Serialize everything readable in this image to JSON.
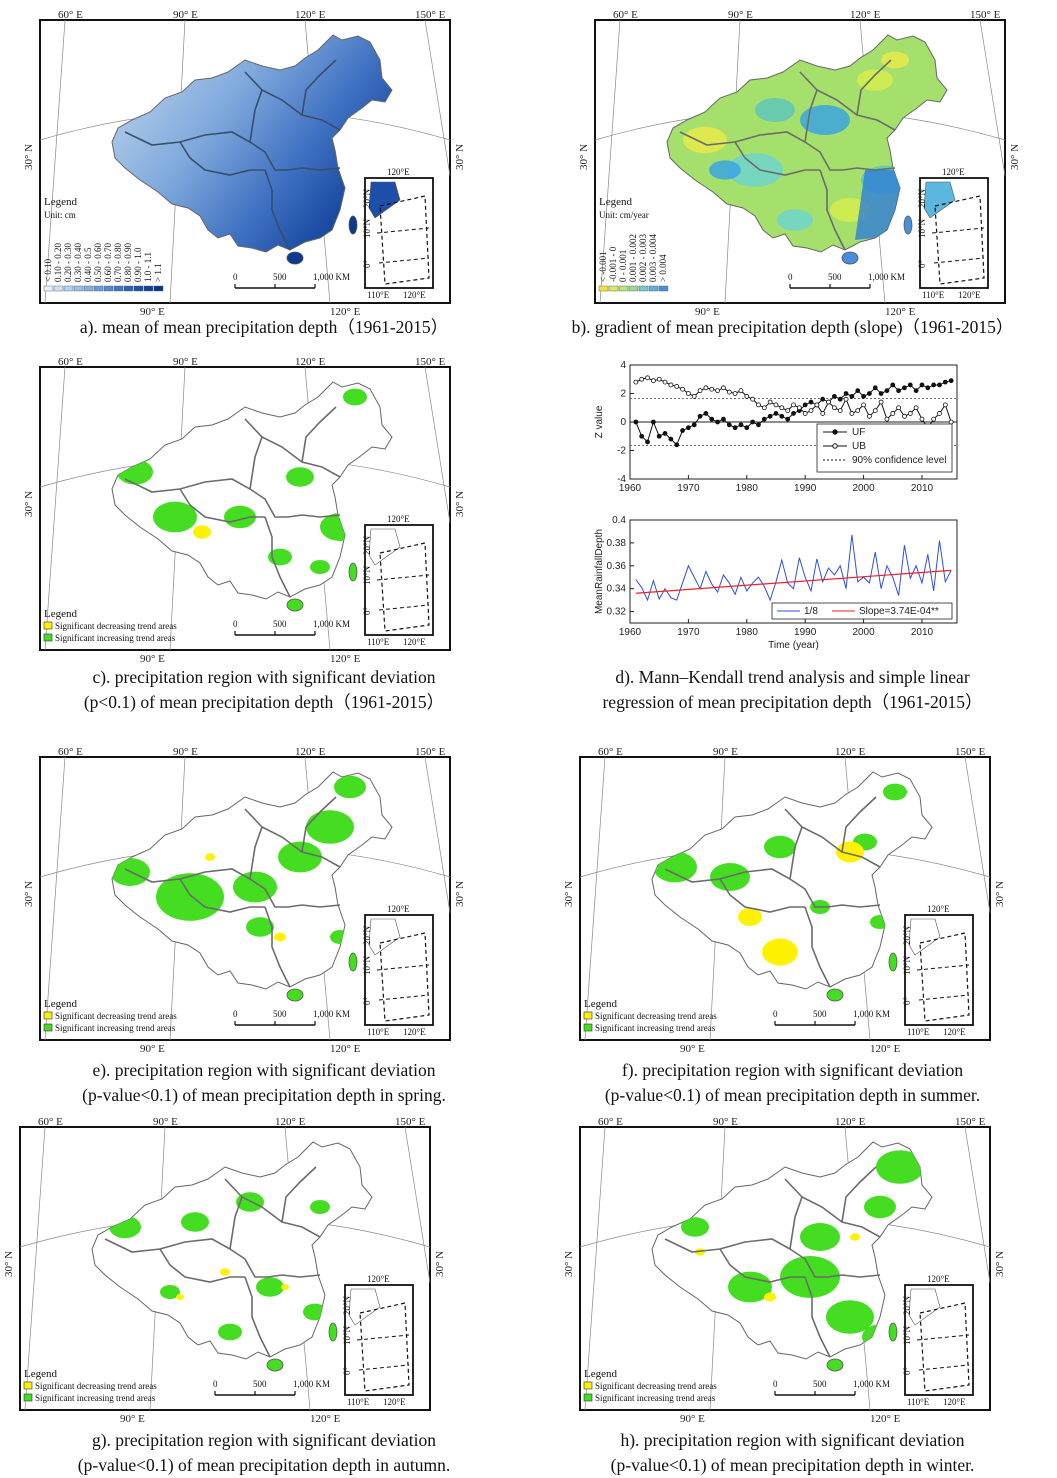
{
  "maps": [
    {
      "id": "a",
      "mode": "gradient",
      "legend_title": "Legend",
      "legend_unit": "Unit: cm",
      "classes": [
        "< 0.10",
        "0.10 - 0.20",
        "0.20 - 0.30",
        "0.30 - 0.40",
        "0.40 - 0.5",
        "0.50 - 0.60",
        "0.60 - 0.70",
        "0.70 - 0.80",
        "0.80 - 0.90",
        "0.90 - 1.0",
        "1.0 - 1.1",
        "> 1.1"
      ],
      "class_colors": [
        "#e6f0fa",
        "#cfe1f4",
        "#b6d1ee",
        "#9cc0e7",
        "#84afe0",
        "#6c9cd7",
        "#5589cd",
        "#4077c2",
        "#2d64b5",
        "#1d52a6",
        "#124296",
        "#0a3486"
      ],
      "caption_lines": [
        "a). mean of mean precipitation depth（1961-2015）"
      ]
    },
    {
      "id": "b",
      "mode": "slope",
      "legend_title": "Legend",
      "legend_unit": "Unit: cm/year",
      "classes": [
        "< -0.001",
        "-0.001 - 0",
        "0 - 0.001",
        "0.001 - 0.002",
        "0.002 - 0.003",
        "0.003 - 0.004",
        "> 0.004"
      ],
      "class_colors": [
        "#f2e43a",
        "#d8ec58",
        "#b8e674",
        "#96dc98",
        "#76c9c6",
        "#5aaee0",
        "#4a8edb"
      ],
      "caption_lines": [
        "b). gradient of mean precipitation depth (slope)（1961-2015）"
      ]
    },
    {
      "id": "c",
      "mode": "sig",
      "legend_title": "Legend",
      "caption_lines": [
        "c). precipitation region with significant deviation",
        "(p<0.1) of mean precipitation depth（1961-2015）"
      ]
    },
    {
      "id": "e",
      "mode": "sig",
      "legend_title": "Legend",
      "caption_lines": [
        "e). precipitation region with significant deviation",
        "(p-value<0.1) of mean precipitation depth in spring."
      ]
    },
    {
      "id": "f",
      "mode": "sig",
      "legend_title": "Legend",
      "caption_lines": [
        "f). precipitation region with significant deviation",
        "(p-value<0.1) of mean precipitation depth in summer."
      ]
    },
    {
      "id": "g",
      "mode": "sig",
      "legend_title": "Legend",
      "caption_lines": [
        "g). precipitation region with significant deviation",
        "(p-value<0.1) of mean precipitation depth in autumn."
      ]
    },
    {
      "id": "h",
      "mode": "sig",
      "legend_title": "Legend",
      "caption_lines": [
        "h). precipitation region with significant deviation",
        "(p-value<0.1) of mean precipitation depth in winter."
      ]
    }
  ],
  "map_common": {
    "top_ticks": [
      "60°  E",
      "90°  E",
      "120°  E",
      "150°  E"
    ],
    "bottom_ticks": [
      "90°  E",
      "120°  E"
    ],
    "left_tick": "30°  N",
    "right_tick": "30°  N",
    "sig_legend": [
      "Significant decreasing trend areas",
      "Significant increasing trend areas"
    ],
    "sig_colors": {
      "decrease": "#fff200",
      "increase": "#44dd22",
      "land": "#ffffff",
      "boundary": "#777777"
    },
    "scale_labels": [
      "0",
      "500",
      "1,000  KM"
    ],
    "inset_lat": [
      "20°N",
      "10°N",
      "0°"
    ],
    "inset_lon": [
      "110°E",
      "120°E"
    ],
    "inset_top": "120°E"
  },
  "chart_data": [
    {
      "type": "line",
      "id": "d-mk",
      "ylabel": "Z value",
      "ylim": [
        -4,
        4
      ],
      "yticks": [
        -4,
        -2,
        0,
        2,
        4
      ],
      "xlim": [
        1960,
        2016
      ],
      "xticks": [
        1960,
        1970,
        1980,
        1990,
        2000,
        2010
      ],
      "x": [
        1961,
        1962,
        1963,
        1964,
        1965,
        1966,
        1967,
        1968,
        1969,
        1970,
        1971,
        1972,
        1973,
        1974,
        1975,
        1976,
        1977,
        1978,
        1979,
        1980,
        1981,
        1982,
        1983,
        1984,
        1985,
        1986,
        1987,
        1988,
        1989,
        1990,
        1991,
        1992,
        1993,
        1994,
        1995,
        1996,
        1997,
        1998,
        1999,
        2000,
        2001,
        2002,
        2003,
        2004,
        2005,
        2006,
        2007,
        2008,
        2009,
        2010,
        2011,
        2012,
        2013,
        2014,
        2015
      ],
      "series": [
        {
          "name": "UF",
          "values": [
            0,
            -1.0,
            -1.4,
            0,
            -1.0,
            -0.8,
            -1.2,
            -1.6,
            -0.6,
            -0.4,
            -0.2,
            0.4,
            0.6,
            0.2,
            0,
            0.2,
            -0.2,
            -0.4,
            -0.2,
            -0.4,
            0,
            -0.2,
            0.2,
            0.4,
            0.6,
            0.4,
            0.2,
            0.6,
            0.8,
            1.2,
            1.4,
            1.2,
            1.6,
            1.4,
            1.8,
            1.6,
            2.0,
            1.8,
            2.2,
            1.8,
            2.0,
            2.4,
            2.0,
            2.2,
            2.6,
            2.2,
            2.4,
            2.6,
            2.2,
            2.6,
            2.4,
            2.6,
            2.6,
            2.8,
            2.9
          ]
        },
        {
          "name": "UB",
          "values": [
            2.8,
            3.0,
            3.1,
            2.9,
            3.0,
            2.8,
            2.6,
            2.5,
            2.3,
            2.0,
            1.8,
            2.2,
            2.4,
            2.3,
            2.2,
            2.4,
            2.1,
            2.0,
            2.2,
            1.8,
            1.6,
            1.2,
            1.0,
            1.4,
            1.2,
            1.0,
            0.8,
            1.2,
            1.0,
            0.6,
            0.8,
            1.2,
            0.6,
            1.4,
            1.0,
            0.8,
            1.6,
            0.6,
            0.8,
            1.2,
            0.4,
            0.8,
            1.4,
            0.2,
            0.6,
            1.0,
            0.4,
            0.6,
            1.0,
            0.2,
            -0.4,
            0.2,
            0.6,
            1.2,
            0
          ]
        }
      ],
      "confidence": {
        "name": "90% confidence level",
        "values": [
          1.64,
          -1.64
        ]
      },
      "legend": [
        "UF",
        "UB",
        "90% confidence level"
      ]
    },
    {
      "type": "line",
      "id": "d-reg",
      "ylabel": "MeanRainfallDepth",
      "xlabel": "Time (year)",
      "ylim": [
        0.31,
        0.4
      ],
      "yticks": [
        0.32,
        0.34,
        0.36,
        0.38,
        0.4
      ],
      "xlim": [
        1960,
        2016
      ],
      "xticks": [
        1960,
        1970,
        1980,
        1990,
        2000,
        2010
      ],
      "x": [
        1961,
        1962,
        1963,
        1964,
        1965,
        1966,
        1967,
        1968,
        1969,
        1970,
        1971,
        1972,
        1973,
        1974,
        1975,
        1976,
        1977,
        1978,
        1979,
        1980,
        1981,
        1982,
        1983,
        1984,
        1985,
        1986,
        1987,
        1988,
        1989,
        1990,
        1991,
        1992,
        1993,
        1994,
        1995,
        1996,
        1997,
        1998,
        1999,
        2000,
        2001,
        2002,
        2003,
        2004,
        2005,
        2006,
        2007,
        2008,
        2009,
        2010,
        2011,
        2012,
        2013,
        2014,
        2015
      ],
      "series": [
        {
          "name": "1/8",
          "values": [
            0.348,
            0.341,
            0.33,
            0.347,
            0.331,
            0.34,
            0.332,
            0.33,
            0.345,
            0.36,
            0.35,
            0.34,
            0.355,
            0.344,
            0.337,
            0.352,
            0.345,
            0.335,
            0.35,
            0.338,
            0.345,
            0.35,
            0.342,
            0.33,
            0.346,
            0.365,
            0.345,
            0.34,
            0.367,
            0.35,
            0.338,
            0.366,
            0.346,
            0.358,
            0.352,
            0.36,
            0.34,
            0.387,
            0.346,
            0.35,
            0.345,
            0.372,
            0.34,
            0.36,
            0.35,
            0.334,
            0.378,
            0.349,
            0.36,
            0.345,
            0.37,
            0.338,
            0.382,
            0.346,
            0.356
          ]
        }
      ],
      "trend": {
        "name": "Slope=3.74E-04**",
        "start": 0.336,
        "end": 0.356
      },
      "legend": [
        "1/8",
        "Slope=3.74E-04**"
      ],
      "caption_lines": [
        "d). Mann–Kendall trend analysis and simple linear",
        "regression of mean precipitation depth（1961-2015）"
      ]
    }
  ]
}
